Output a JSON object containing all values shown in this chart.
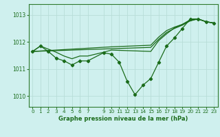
{
  "title": "Graphe pression niveau de la mer (hPa)",
  "background_color": "#cff0ee",
  "grid_color": "#b8ddd8",
  "line_color": "#1a6b1a",
  "text_color": "#1a6b1a",
  "spine_color": "#2d7a2d",
  "xlim": [
    -0.5,
    23.5
  ],
  "ylim": [
    1009.6,
    1013.4
  ],
  "yticks": [
    1010,
    1011,
    1012,
    1013
  ],
  "xticks": [
    0,
    1,
    2,
    3,
    4,
    5,
    6,
    7,
    9,
    10,
    11,
    12,
    13,
    14,
    15,
    16,
    17,
    18,
    19,
    20,
    21,
    22,
    23
  ],
  "line1_x": [
    0,
    1,
    2,
    3,
    4,
    5,
    6,
    7,
    9,
    10,
    11,
    12,
    13,
    14,
    15,
    16,
    17,
    18,
    19,
    20,
    21,
    22,
    23
  ],
  "line1_y": [
    1011.65,
    1011.85,
    1011.65,
    1011.4,
    1011.3,
    1011.15,
    1011.3,
    1011.3,
    1011.6,
    1011.55,
    1011.25,
    1010.55,
    1010.05,
    1010.4,
    1010.65,
    1011.25,
    1011.85,
    1012.15,
    1012.5,
    1012.85,
    1012.85,
    1012.75,
    1012.7
  ],
  "line2_x": [
    0,
    10,
    15,
    16,
    17,
    18,
    19,
    20,
    21,
    22,
    23
  ],
  "line2_y": [
    1011.65,
    1011.75,
    1011.8,
    1012.1,
    1012.35,
    1012.5,
    1012.62,
    1012.78,
    1012.85,
    1012.75,
    1012.7
  ],
  "line3_x": [
    0,
    10,
    15,
    16,
    17,
    18,
    19,
    20,
    21,
    22,
    23
  ],
  "line3_y": [
    1011.65,
    1011.82,
    1011.88,
    1012.18,
    1012.42,
    1012.55,
    1012.65,
    1012.8,
    1012.85,
    1012.75,
    1012.7
  ],
  "line4_x": [
    0,
    1,
    3,
    4,
    5,
    6,
    7,
    9,
    10,
    15,
    16,
    17,
    18,
    19,
    20,
    21,
    22,
    23
  ],
  "line4_y": [
    1011.65,
    1011.85,
    1011.62,
    1011.48,
    1011.38,
    1011.48,
    1011.48,
    1011.62,
    1011.7,
    1011.65,
    1012.05,
    1012.3,
    1012.52,
    1012.65,
    1012.82,
    1012.85,
    1012.75,
    1012.7
  ]
}
